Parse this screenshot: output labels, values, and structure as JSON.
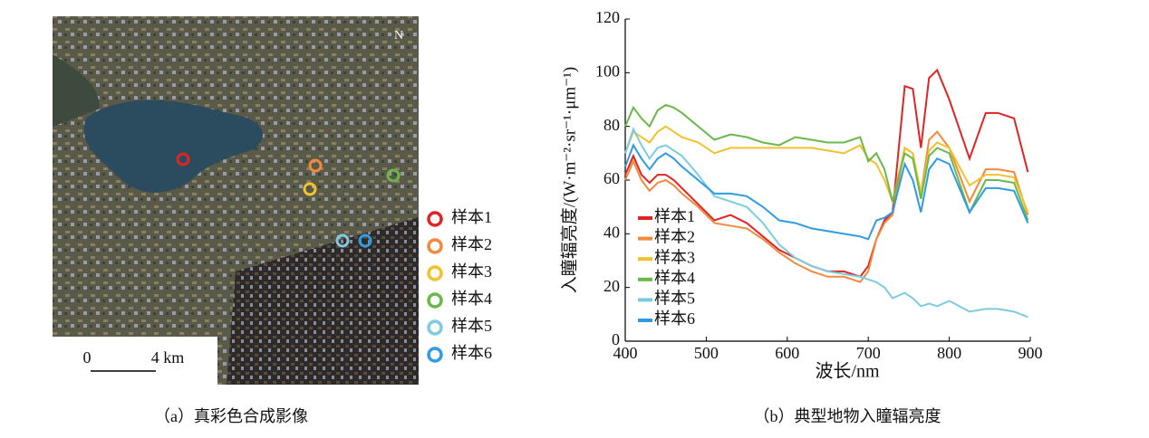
{
  "image": {
    "north": "N",
    "scale_start": "0",
    "scale_end": "4 km",
    "caption": "（a）真彩色合成影像"
  },
  "chart_data": {
    "type": "line",
    "caption": "（b）典型地物入瞳辐亮度",
    "xlabel": "波长/nm",
    "ylabel": "入瞳辐亮度/(W·m⁻²·sr⁻¹·μm⁻¹)",
    "x": [
      400,
      410,
      420,
      430,
      440,
      450,
      460,
      470,
      490,
      510,
      530,
      550,
      570,
      590,
      610,
      630,
      650,
      670,
      690,
      700,
      710,
      720,
      730,
      745,
      755,
      765,
      775,
      785,
      800,
      825,
      845,
      860,
      880,
      897
    ],
    "series": [
      {
        "name": "样本1",
        "color": "#e02424",
        "values": [
          62,
          69,
          62,
          59,
          62,
          62,
          60,
          57,
          51,
          45,
          47,
          44,
          39,
          34,
          31,
          28,
          26,
          26,
          24,
          28,
          38,
          45,
          48,
          95,
          94,
          72,
          98,
          101,
          90,
          68,
          85,
          85,
          83,
          63
        ]
      },
      {
        "name": "样本2",
        "color": "#f08a3c",
        "values": [
          60,
          67,
          60,
          56,
          59,
          60,
          58,
          55,
          50,
          44,
          43,
          42,
          38,
          33,
          29,
          26,
          24,
          24,
          22,
          26,
          38,
          44,
          47,
          72,
          70,
          55,
          75,
          78,
          72,
          52,
          64,
          64,
          63,
          47
        ]
      },
      {
        "name": "样本3",
        "color": "#f2c12e",
        "values": [
          70,
          78,
          76,
          74,
          78,
          80,
          78,
          76,
          74,
          70,
          72,
          72,
          72,
          72,
          72,
          72,
          71,
          70,
          73,
          68,
          66,
          60,
          52,
          72,
          70,
          55,
          71,
          74,
          72,
          58,
          62,
          62,
          61,
          48
        ]
      },
      {
        "name": "样本4",
        "color": "#6ab84a",
        "values": [
          80,
          87,
          83,
          80,
          86,
          88,
          87,
          85,
          80,
          75,
          77,
          76,
          74,
          73,
          76,
          75,
          74,
          74,
          76,
          67,
          70,
          64,
          52,
          70,
          68,
          53,
          69,
          72,
          70,
          48,
          60,
          60,
          59,
          45
        ]
      },
      {
        "name": "样本5",
        "color": "#7ccbe0",
        "values": [
          70,
          79,
          73,
          68,
          72,
          73,
          71,
          69,
          62,
          54,
          52,
          50,
          44,
          36,
          31,
          28,
          26,
          25,
          24,
          23,
          22,
          20,
          16,
          18,
          16,
          13,
          14,
          13,
          15,
          11,
          12,
          12,
          11,
          9
        ]
      },
      {
        "name": "样本6",
        "color": "#2f9be0",
        "values": [
          65,
          73,
          68,
          64,
          68,
          70,
          68,
          65,
          60,
          55,
          55,
          54,
          50,
          45,
          44,
          42,
          41,
          40,
          39,
          38,
          45,
          46,
          48,
          66,
          60,
          48,
          64,
          68,
          66,
          48,
          57,
          57,
          56,
          44
        ]
      }
    ],
    "xlim": [
      400,
      900
    ],
    "xticks": [
      400,
      500,
      600,
      700,
      800,
      900
    ],
    "ylim": [
      0,
      120
    ],
    "yticks": [
      0,
      20,
      40,
      60,
      80,
      100,
      120
    ],
    "legend": "lower left"
  }
}
